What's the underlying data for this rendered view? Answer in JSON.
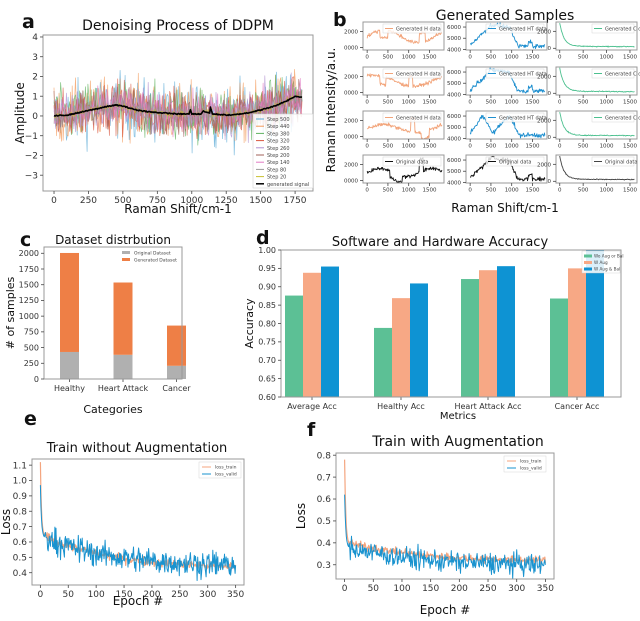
{
  "chart_data": [
    {
      "panel": "a",
      "type": "line",
      "title": "Denoising Process of DDPM",
      "xlabel": "Raman Shift/cm-1",
      "ylabel": "Amplitude",
      "xlim": [
        -80,
        1880
      ],
      "ylim": [
        -3.8,
        4.1
      ],
      "xticks": [
        0,
        250,
        500,
        750,
        1000,
        1250,
        1500,
        1750
      ],
      "yticks": [
        -3,
        -2,
        -1,
        0,
        1,
        2,
        3,
        4
      ],
      "legend_position": "bottom-right",
      "series": [
        {
          "name": "Step 500",
          "color": "#5aa9d6",
          "noise_amplitude": 1.5
        },
        {
          "name": "Step 440",
          "color": "#f39a5a",
          "noise_amplitude": 1.4
        },
        {
          "name": "Step 380",
          "color": "#5fb35f",
          "noise_amplitude": 1.3
        },
        {
          "name": "Step 320",
          "color": "#d8553f",
          "noise_amplitude": 1.2
        },
        {
          "name": "Step 260",
          "color": "#b08fd0",
          "noise_amplitude": 1.1
        },
        {
          "name": "Step 200",
          "color": "#a0605a",
          "noise_amplitude": 1.0
        },
        {
          "name": "Step 140",
          "color": "#e07ac4",
          "noise_amplitude": 0.9
        },
        {
          "name": "Step 80",
          "color": "#9a9a9a",
          "noise_amplitude": 0.5
        },
        {
          "name": "Step 20",
          "color": "#c8c030",
          "noise_amplitude": 0.15
        },
        {
          "name": "generated signal",
          "color": "#000000",
          "x": [
            0,
            100,
            200,
            300,
            400,
            450,
            500,
            600,
            700,
            800,
            900,
            980,
            990,
            1000,
            1070,
            1080,
            1130,
            1135,
            1150,
            1250,
            1300,
            1400,
            1500,
            1600,
            1700,
            1750,
            1800
          ],
          "y": [
            0.0,
            0.05,
            0.2,
            0.35,
            0.5,
            0.55,
            0.5,
            0.3,
            0.2,
            0.15,
            0.1,
            0.1,
            0.3,
            0.1,
            0.1,
            0.25,
            0.15,
            0.45,
            0.1,
            0.05,
            0.05,
            0.15,
            0.3,
            0.5,
            0.8,
            1.0,
            0.95
          ]
        }
      ]
    },
    {
      "panel": "b",
      "type": "line",
      "title": "Generated Samples",
      "xlabel": "Raman Shift/cm-1",
      "ylabel": "Raman Intensity/a.u.",
      "columns": [
        {
          "xticks": [
            0,
            500,
            1000,
            1500
          ],
          "xlim": [
            -100,
            1850
          ],
          "yticks": [
            0,
            2000
          ],
          "ytick_labels": [
            "0000",
            "2000"
          ],
          "ylim": [
            -300,
            3200
          ],
          "rows": [
            {
              "label": "Generated H data",
              "color": "#f2a47a",
              "shape": "h1"
            },
            {
              "label": "Generated H data",
              "color": "#f2a47a",
              "shape": "h2"
            },
            {
              "label": "Generated H data",
              "color": "#f2a47a",
              "shape": "h3"
            },
            {
              "label": "Original data",
              "color": "#111111",
              "shape": "h0"
            }
          ]
        },
        {
          "xticks": [
            0,
            500,
            1000,
            1500
          ],
          "xlim": [
            -100,
            1850
          ],
          "yticks": [
            4000,
            5000,
            6000
          ],
          "ytick_labels": [
            "4000",
            "5000",
            "6000"
          ],
          "ylim": [
            3950,
            6450
          ],
          "rows": [
            {
              "label": "Generated HT data",
              "color": "#1f8fcf",
              "shape": "ht1"
            },
            {
              "label": "Generated HT data",
              "color": "#1f8fcf",
              "shape": "ht1"
            },
            {
              "label": "Generated HT data",
              "color": "#1f8fcf",
              "shape": "ht3"
            },
            {
              "label": "Original data",
              "color": "#111111",
              "shape": "ht1"
            }
          ]
        },
        {
          "xticks": [
            0,
            500,
            1000,
            1500
          ],
          "xlim": [
            -80,
            1650
          ],
          "yticks": [
            0,
            2000
          ],
          "ytick_labels": [
            "0",
            "2000"
          ],
          "ylim": [
            -200,
            3100
          ],
          "rows": [
            {
              "label": "Generated C data",
              "color": "#4cc08f",
              "shape": "c"
            },
            {
              "label": "Generated C data",
              "color": "#4cc08f",
              "shape": "c"
            },
            {
              "label": "Generated C data",
              "color": "#4cc08f",
              "shape": "c"
            },
            {
              "label": "Original data",
              "color": "#444444",
              "shape": "c"
            }
          ]
        }
      ]
    },
    {
      "panel": "c",
      "type": "bar",
      "stacked": true,
      "title": "Dataset distrbution",
      "xlabel": "Categories",
      "ylabel": "# of samples",
      "categories": [
        "Healthy",
        "Heart Attack",
        "Cancer"
      ],
      "ylim": [
        0,
        2100
      ],
      "yticks": [
        0,
        250,
        500,
        750,
        1000,
        1250,
        1500,
        1750,
        2000
      ],
      "legend_position": "top-right",
      "series": [
        {
          "name": "Original Dataset",
          "color": "#b0b0b0",
          "values": [
            430,
            385,
            210
          ]
        },
        {
          "name": "Generated Dataset",
          "color": "#ee7f46",
          "values": [
            1575,
            1150,
            640
          ]
        }
      ]
    },
    {
      "panel": "d",
      "type": "bar",
      "title": "Software and Hardware Accuracy",
      "xlabel": "Metrics",
      "ylabel": "Accuracy",
      "categories": [
        "Average Acc",
        "Healthy Acc",
        "Heart Attack Acc",
        "Cancer Acc"
      ],
      "ylim": [
        0.6,
        1.0
      ],
      "yticks": [
        0.6,
        0.65,
        0.7,
        0.75,
        0.8,
        0.85,
        0.9,
        0.95,
        1.0
      ],
      "legend_position": "top-right",
      "series": [
        {
          "name": "Wo Aug or Bal",
          "color": "#5cc095",
          "values": [
            0.876,
            0.788,
            0.921,
            0.868
          ]
        },
        {
          "name": "W Aug",
          "color": "#f7a885",
          "values": [
            0.938,
            0.869,
            0.945,
            0.95
          ]
        },
        {
          "name": "W Aug & Bal",
          "color": "#0e93d3",
          "values": [
            0.955,
            0.909,
            0.956,
            1.0
          ]
        }
      ]
    },
    {
      "panel": "e",
      "type": "line",
      "title": "Train without Augmentation",
      "xlabel": "Epoch #",
      "ylabel": "Loss",
      "xlim": [
        -15,
        365
      ],
      "ylim": [
        0.32,
        1.14
      ],
      "xticks": [
        0,
        50,
        100,
        150,
        200,
        250,
        300,
        350
      ],
      "yticks": [
        0.4,
        0.5,
        0.6,
        0.7,
        0.8,
        0.9,
        1.0,
        1.1
      ],
      "legend_position": "top-right",
      "series": [
        {
          "name": "loss_train",
          "color": "#f4a57f",
          "start": 1.12,
          "plateau_start": 0.64,
          "end": 0.44,
          "noise": 0.02
        },
        {
          "name": "loss_valid",
          "color": "#1a93cf",
          "start": 0.97,
          "plateau_start": 0.63,
          "end": 0.45,
          "noise": 0.06
        }
      ]
    },
    {
      "panel": "f",
      "type": "line",
      "title": "Train with Augmentation",
      "xlabel": "Epoch #",
      "ylabel": "Loss",
      "xlim": [
        -15,
        365
      ],
      "ylim": [
        0.235,
        0.81
      ],
      "xticks": [
        0,
        50,
        100,
        150,
        200,
        250,
        300,
        350
      ],
      "yticks": [
        0.3,
        0.4,
        0.5,
        0.6,
        0.7,
        0.8
      ],
      "legend_position": "top-right",
      "series": [
        {
          "name": "loss_train",
          "color": "#f4a57f",
          "start": 0.78,
          "plateau_start": 0.4,
          "end": 0.32,
          "noise": 0.012
        },
        {
          "name": "loss_valid",
          "color": "#1a93cf",
          "start": 0.62,
          "plateau_start": 0.38,
          "end": 0.3,
          "noise": 0.035
        }
      ]
    }
  ],
  "panel_labels": [
    "a",
    "b",
    "c",
    "d",
    "e",
    "f"
  ]
}
